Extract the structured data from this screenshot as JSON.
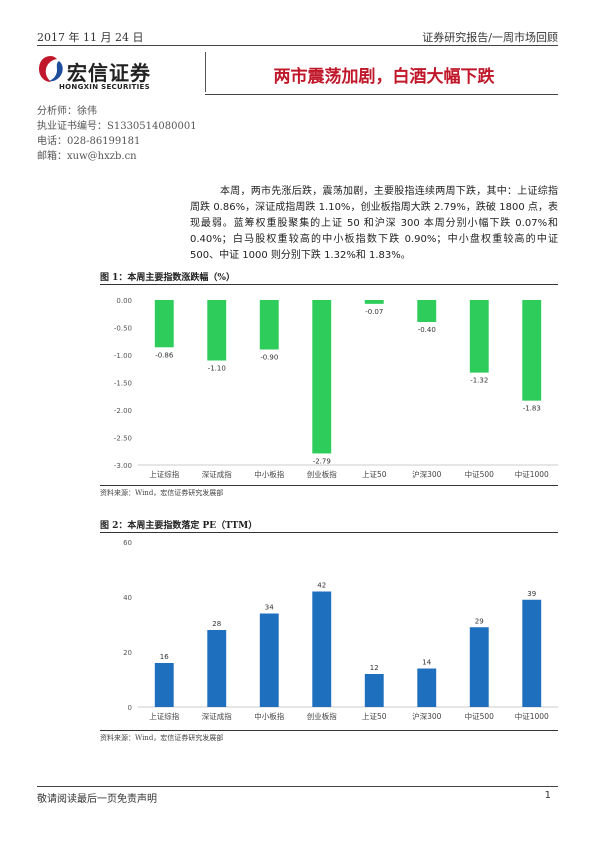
{
  "header": {
    "date": "2017 年 11 月 24 日",
    "series": "证券研究报告/一周市场回顾"
  },
  "logo": {
    "name_cn": "宏信证券",
    "sub_cn": "宏信证券",
    "name_en": "HONGXIN SECURITIES"
  },
  "title": "两市震荡加剧，白酒大幅下跌",
  "analyst": {
    "name": "分析师：徐伟",
    "license": "执业证书编号：S1330514080001",
    "phone": "电话：028-86199181",
    "email": "邮箱：xuw@hxzb.cn"
  },
  "summary": "本周，两市先涨后跌，震荡加剧，主要股指连续两周下跌，其中：上证综指周跌 0.86%，深证成指周跌 1.10%，创业板指周大跌 2.79%，跌破 1800 点，表现最弱。蓝筹权重股聚集的上证 50 和沪深 300 本周分别小幅下跌 0.07%和 0.40%；白马股权重较高的中小板指数下跌 0.90%；中小盘权重较高的中证 500、中证 1000 则分别下跌 1.32%和 1.83%。",
  "figure1": {
    "title": "图 1：本周主要指数涨跌幅（%）",
    "source": "资料来源：Wind，宏信证券研究发展部"
  },
  "figure2": {
    "title": "图 2：本周主要指数落定 PE（TTM）",
    "source": "资料来源：Wind，宏信证券研究发展部"
  },
  "chart_data": [
    {
      "type": "bar",
      "categories": [
        "上证综指",
        "深证成指",
        "中小板指",
        "创业板指",
        "上证50",
        "沪深300",
        "中证500",
        "中证1000"
      ],
      "values": [
        -0.86,
        -1.1,
        -0.9,
        -2.79,
        -0.07,
        -0.4,
        -1.32,
        -1.83
      ],
      "value_labels": [
        "-0.86",
        "-1.10",
        "-0.90",
        "-2.79",
        "-0.07",
        "-0.40",
        "-1.32",
        "-1.83"
      ],
      "yticks": [
        0.0,
        -0.5,
        -1.0,
        -1.5,
        -2.0,
        -2.5,
        -3.0
      ],
      "ytick_labels": [
        "0.00",
        "-0.50",
        "-1.00",
        "-1.50",
        "-2.00",
        "-2.50",
        "-3.00"
      ],
      "ylim": [
        -3.0,
        0.0
      ],
      "grid": false,
      "legend": "none",
      "color": "#2ecc5a"
    },
    {
      "type": "bar",
      "categories": [
        "上证综指",
        "深证成指",
        "中小板指",
        "创业板指",
        "上证50",
        "沪深300",
        "中证500",
        "中证1000"
      ],
      "values": [
        16,
        28,
        34,
        42,
        12,
        14,
        29,
        39
      ],
      "value_labels": [
        "16",
        "28",
        "34",
        "42",
        "12",
        "14",
        "29",
        "39"
      ],
      "yticks": [
        0,
        20,
        40,
        60
      ],
      "ytick_labels": [
        "0",
        "20",
        "40",
        "60"
      ],
      "ylim": [
        0,
        60
      ],
      "grid": false,
      "legend": "none",
      "color": "#1f6fbf"
    }
  ],
  "footer": {
    "disclaimer": "敬请阅读最后一页免责声明",
    "page": "1"
  }
}
